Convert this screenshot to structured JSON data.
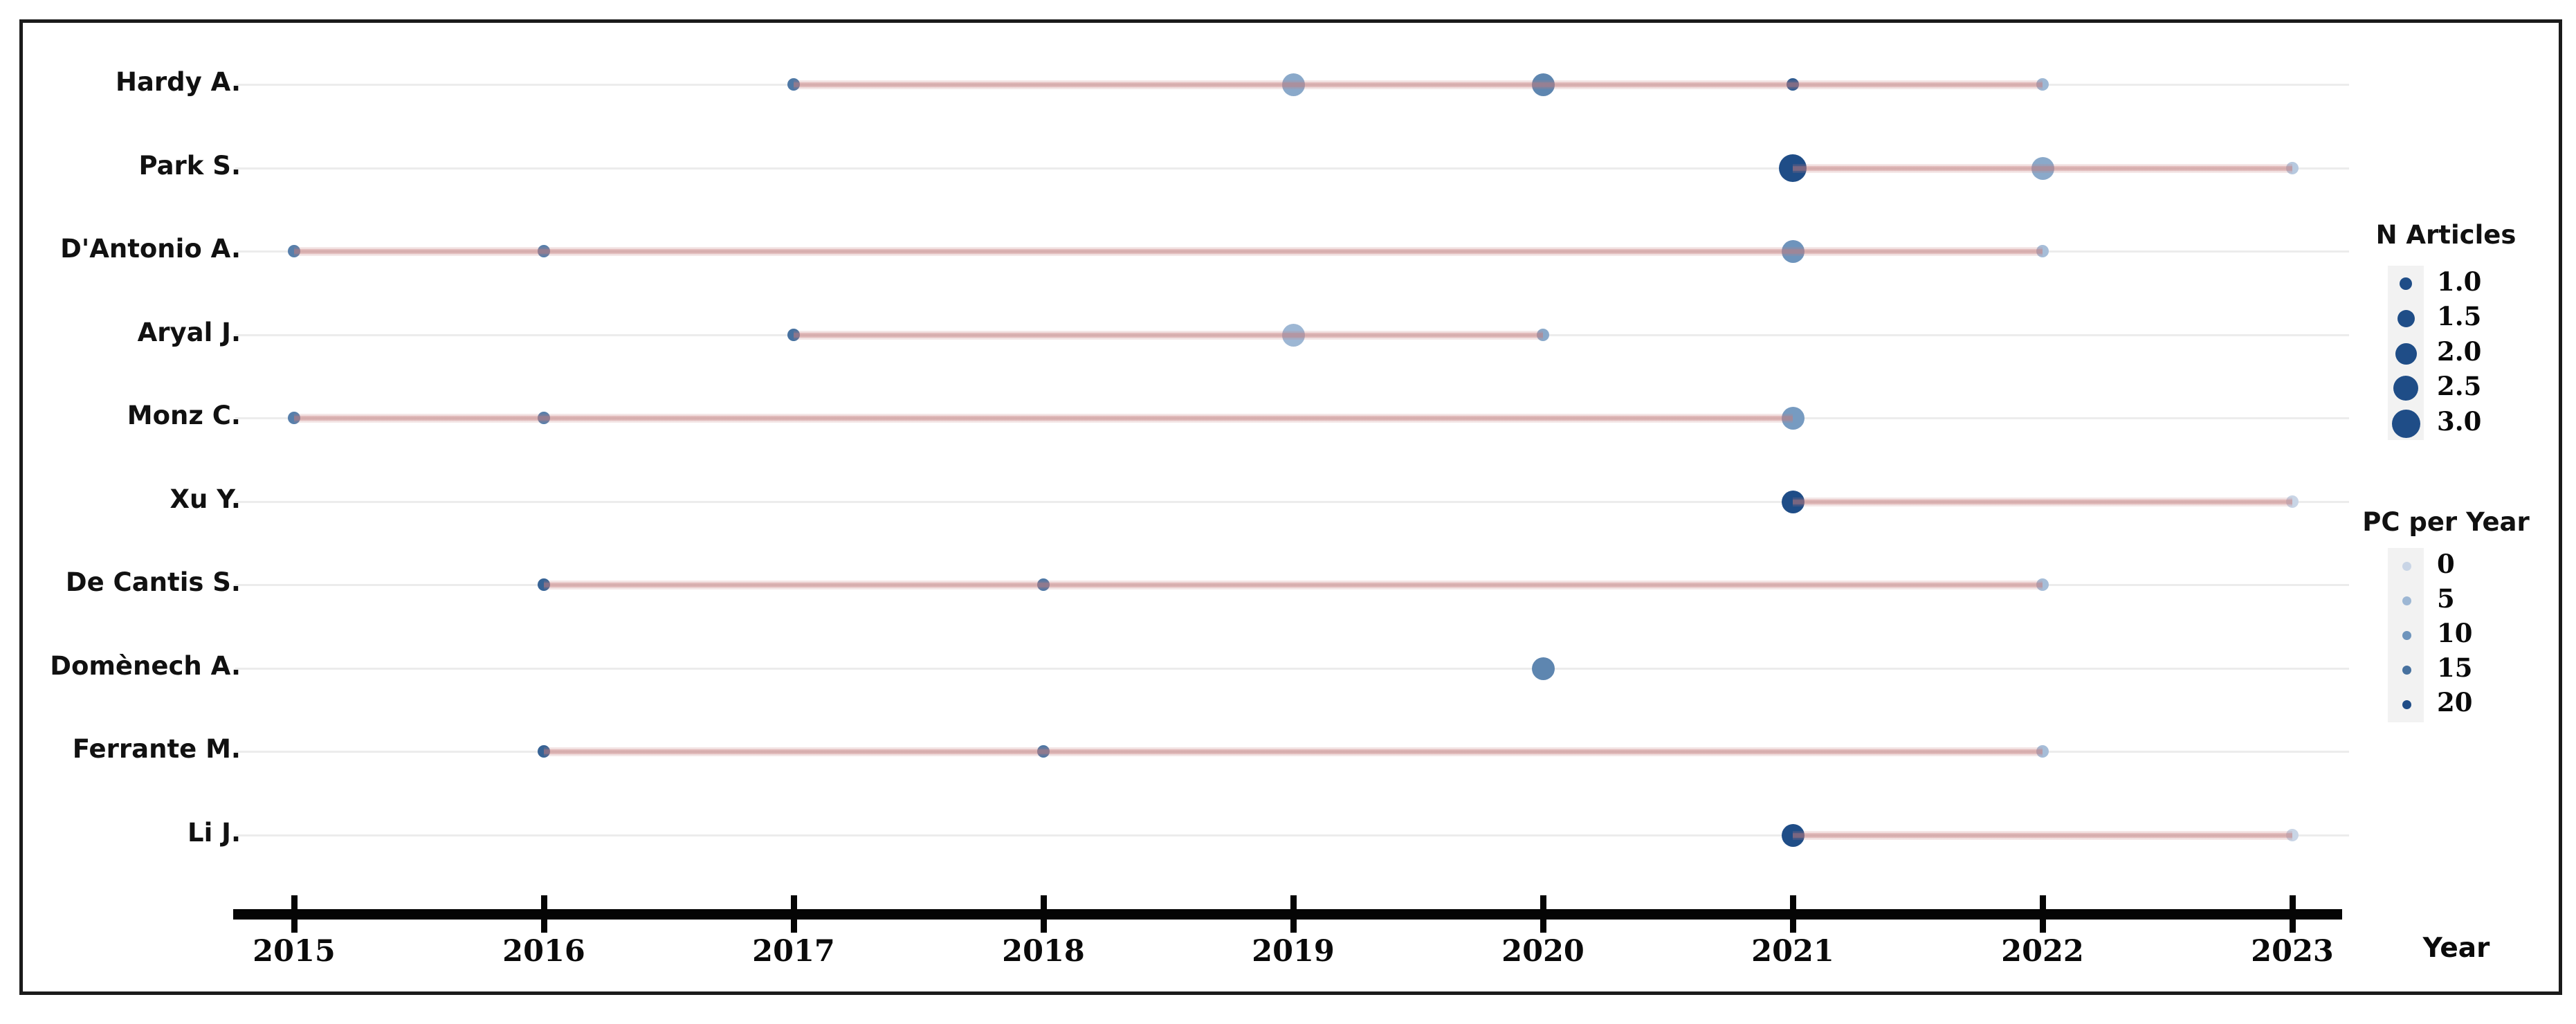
{
  "colors": {
    "frame_border": "#1b1b1b",
    "axis": "#050505",
    "row_guide": "#ececec",
    "timeline_pink": "rgba(197,123,123,0.55)",
    "legend_strip": "#f2f2f2",
    "dot_color_stops": [
      "#c9d5e6",
      "#9db7d4",
      "#6e94bc",
      "#47719f",
      "#1f4d87"
    ]
  },
  "chart_data": {
    "type": "scatter",
    "subtype": "authors-production-over-time-dot-timeline",
    "title": "",
    "xlabel": "Year",
    "ylabel": "",
    "x_range": [
      2015,
      2023
    ],
    "x_ticks": [
      "2015",
      "2016",
      "2017",
      "2018",
      "2019",
      "2020",
      "2021",
      "2022",
      "2023"
    ],
    "grid": "faint-horizontal-row-guides",
    "size_encoding": {
      "field": "n_articles",
      "domain": [
        1.0,
        3.0
      ]
    },
    "color_encoding": {
      "field": "pc_per_year",
      "domain": [
        0,
        20
      ]
    },
    "series": [
      {
        "name": "Hardy A.",
        "span": [
          2017,
          2022
        ],
        "points": [
          {
            "year": 2017,
            "n_articles": 1,
            "pc_per_year": 14
          },
          {
            "year": 2019,
            "n_articles": 2,
            "pc_per_year": 7
          },
          {
            "year": 2020,
            "n_articles": 2,
            "pc_per_year": 12
          },
          {
            "year": 2021,
            "n_articles": 1,
            "pc_per_year": 18
          },
          {
            "year": 2022,
            "n_articles": 1,
            "pc_per_year": 5
          }
        ]
      },
      {
        "name": "Park S.",
        "span": [
          2021,
          2023
        ],
        "points": [
          {
            "year": 2021,
            "n_articles": 3,
            "pc_per_year": 20
          },
          {
            "year": 2022,
            "n_articles": 2,
            "pc_per_year": 7
          },
          {
            "year": 2023,
            "n_articles": 1,
            "pc_per_year": 2
          }
        ]
      },
      {
        "name": "D'Antonio A.",
        "span": [
          2015,
          2022
        ],
        "points": [
          {
            "year": 2015,
            "n_articles": 1,
            "pc_per_year": 13
          },
          {
            "year": 2016,
            "n_articles": 1,
            "pc_per_year": 13
          },
          {
            "year": 2021,
            "n_articles": 2,
            "pc_per_year": 10
          },
          {
            "year": 2022,
            "n_articles": 1,
            "pc_per_year": 4
          }
        ]
      },
      {
        "name": "Aryal J.",
        "span": [
          2017,
          2020
        ],
        "points": [
          {
            "year": 2017,
            "n_articles": 1,
            "pc_per_year": 15
          },
          {
            "year": 2019,
            "n_articles": 2,
            "pc_per_year": 5
          },
          {
            "year": 2020,
            "n_articles": 1,
            "pc_per_year": 7
          }
        ]
      },
      {
        "name": "Monz C.",
        "span": [
          2015,
          2021
        ],
        "points": [
          {
            "year": 2015,
            "n_articles": 1,
            "pc_per_year": 13
          },
          {
            "year": 2016,
            "n_articles": 1,
            "pc_per_year": 13
          },
          {
            "year": 2021,
            "n_articles": 2,
            "pc_per_year": 9
          }
        ]
      },
      {
        "name": "Xu Y.",
        "span": [
          2021,
          2023
        ],
        "points": [
          {
            "year": 2021,
            "n_articles": 2,
            "pc_per_year": 20
          },
          {
            "year": 2023,
            "n_articles": 1,
            "pc_per_year": 0
          }
        ]
      },
      {
        "name": "De Cantis S.",
        "span": [
          2016,
          2022
        ],
        "points": [
          {
            "year": 2016,
            "n_articles": 1,
            "pc_per_year": 17
          },
          {
            "year": 2018,
            "n_articles": 1,
            "pc_per_year": 14
          },
          {
            "year": 2022,
            "n_articles": 1,
            "pc_per_year": 4
          }
        ]
      },
      {
        "name": "Domènech A.",
        "span": null,
        "points": [
          {
            "year": 2020,
            "n_articles": 2,
            "pc_per_year": 12
          }
        ]
      },
      {
        "name": "Ferrante M.",
        "span": [
          2016,
          2022
        ],
        "points": [
          {
            "year": 2016,
            "n_articles": 1,
            "pc_per_year": 17
          },
          {
            "year": 2018,
            "n_articles": 1,
            "pc_per_year": 14
          },
          {
            "year": 2022,
            "n_articles": 1,
            "pc_per_year": 4
          }
        ]
      },
      {
        "name": "Li J.",
        "span": [
          2021,
          2023
        ],
        "points": [
          {
            "year": 2021,
            "n_articles": 2,
            "pc_per_year": 20
          },
          {
            "year": 2023,
            "n_articles": 1,
            "pc_per_year": 0
          }
        ]
      }
    ],
    "legend_size": {
      "title": "N Articles",
      "values": [
        "1.0",
        "1.5",
        "2.0",
        "2.5",
        "3.0"
      ],
      "position": "right-upper"
    },
    "legend_color": {
      "title": "PC per Year",
      "values": [
        "0",
        "5",
        "10",
        "15",
        "20"
      ],
      "position": "right-lower"
    }
  }
}
